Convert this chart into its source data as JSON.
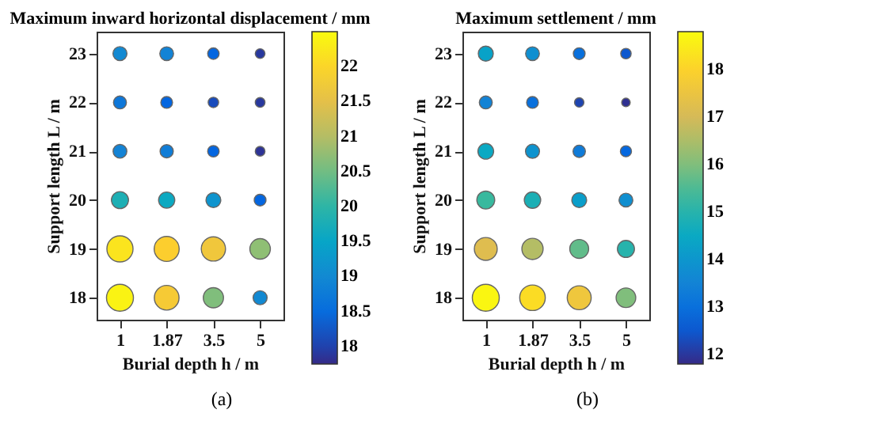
{
  "chart_data": [
    {
      "type": "bubble",
      "title": "Maximum inward horizontal displacement / mm",
      "xlabel": "Burial depth  h / m",
      "ylabel": "Support length  L / m",
      "categories": [
        "1",
        "1.87",
        "3.5",
        "5"
      ],
      "series": [
        {
          "x": [
            "1",
            "1.87",
            "3.5",
            "5",
            "1",
            "1.87",
            "3.5",
            "5",
            "1",
            "1.87",
            "3.5",
            "5",
            "1",
            "1.87",
            "3.5",
            "5",
            "1",
            "1.87",
            "3.5",
            "5",
            "1",
            "1.87",
            "3.5",
            "5"
          ],
          "values": [
            23,
            23,
            23,
            23,
            22,
            22,
            22,
            22,
            21,
            21,
            21,
            21,
            20,
            20,
            20,
            20,
            19,
            19,
            19,
            19,
            18,
            18,
            18,
            18
          ],
          "cvalues": [
            19.0,
            18.9,
            18.4,
            17.9,
            18.7,
            18.4,
            18.1,
            17.9,
            18.9,
            18.8,
            18.4,
            17.85,
            19.8,
            19.6,
            19.2,
            18.4,
            22.2,
            21.9,
            21.7,
            20.7,
            22.4,
            21.8,
            20.6,
            19.0
          ],
          "sizes": [
            0.27,
            0.26,
            0.18,
            0.13,
            0.23,
            0.19,
            0.15,
            0.13,
            0.26,
            0.24,
            0.18,
            0.13,
            0.4,
            0.36,
            0.3,
            0.19,
            0.94,
            0.86,
            0.81,
            0.58,
            1.0,
            0.84,
            0.56,
            0.27
          ]
        }
      ],
      "ylim": [
        17.55,
        23.45
      ],
      "yticks": [
        18,
        19,
        20,
        21,
        22,
        23
      ],
      "clim": [
        17.75,
        22.5
      ],
      "cticks": [
        18,
        18.5,
        19,
        19.5,
        20,
        20.5,
        21,
        21.5,
        22
      ],
      "grid": false,
      "annotations": [
        "(a)"
      ]
    },
    {
      "type": "bubble",
      "title": "Maximum settlement / mm",
      "xlabel": "Burial depth  h / m",
      "ylabel": "Support length  L / m",
      "categories": [
        "1",
        "1.87",
        "3.5",
        "5"
      ],
      "series": [
        {
          "x": [
            "1",
            "1.87",
            "3.5",
            "5",
            "1",
            "1.87",
            "3.5",
            "5",
            "1",
            "1.87",
            "3.5",
            "5",
            "1",
            "1.87",
            "3.5",
            "5",
            "1",
            "1.87",
            "3.5",
            "5",
            "1",
            "1.87",
            "3.5",
            "5"
          ],
          "values": [
            23,
            23,
            23,
            23,
            22,
            22,
            22,
            22,
            21,
            21,
            21,
            21,
            20,
            20,
            20,
            20,
            19,
            19,
            19,
            19,
            18,
            18,
            18,
            18
          ],
          "cvalues": [
            14.3,
            13.8,
            13.0,
            12.5,
            13.5,
            13.0,
            12.2,
            11.9,
            14.5,
            13.9,
            13.3,
            12.8,
            15.3,
            14.8,
            14.2,
            13.8,
            17.2,
            16.6,
            15.7,
            15.0,
            18.7,
            18.2,
            17.6,
            16.0
          ],
          "sizes": [
            0.31,
            0.26,
            0.19,
            0.15,
            0.23,
            0.19,
            0.12,
            0.1,
            0.34,
            0.27,
            0.21,
            0.17,
            0.44,
            0.37,
            0.3,
            0.26,
            0.72,
            0.62,
            0.49,
            0.4,
            1.0,
            0.9,
            0.79,
            0.53
          ]
        }
      ],
      "ylim": [
        17.55,
        23.45
      ],
      "yticks": [
        18,
        19,
        20,
        21,
        22,
        23
      ],
      "clim": [
        11.8,
        18.8
      ],
      "cticks": [
        12,
        13,
        14,
        15,
        16,
        17,
        18
      ],
      "grid": false,
      "annotations": [
        "(b)"
      ]
    }
  ]
}
